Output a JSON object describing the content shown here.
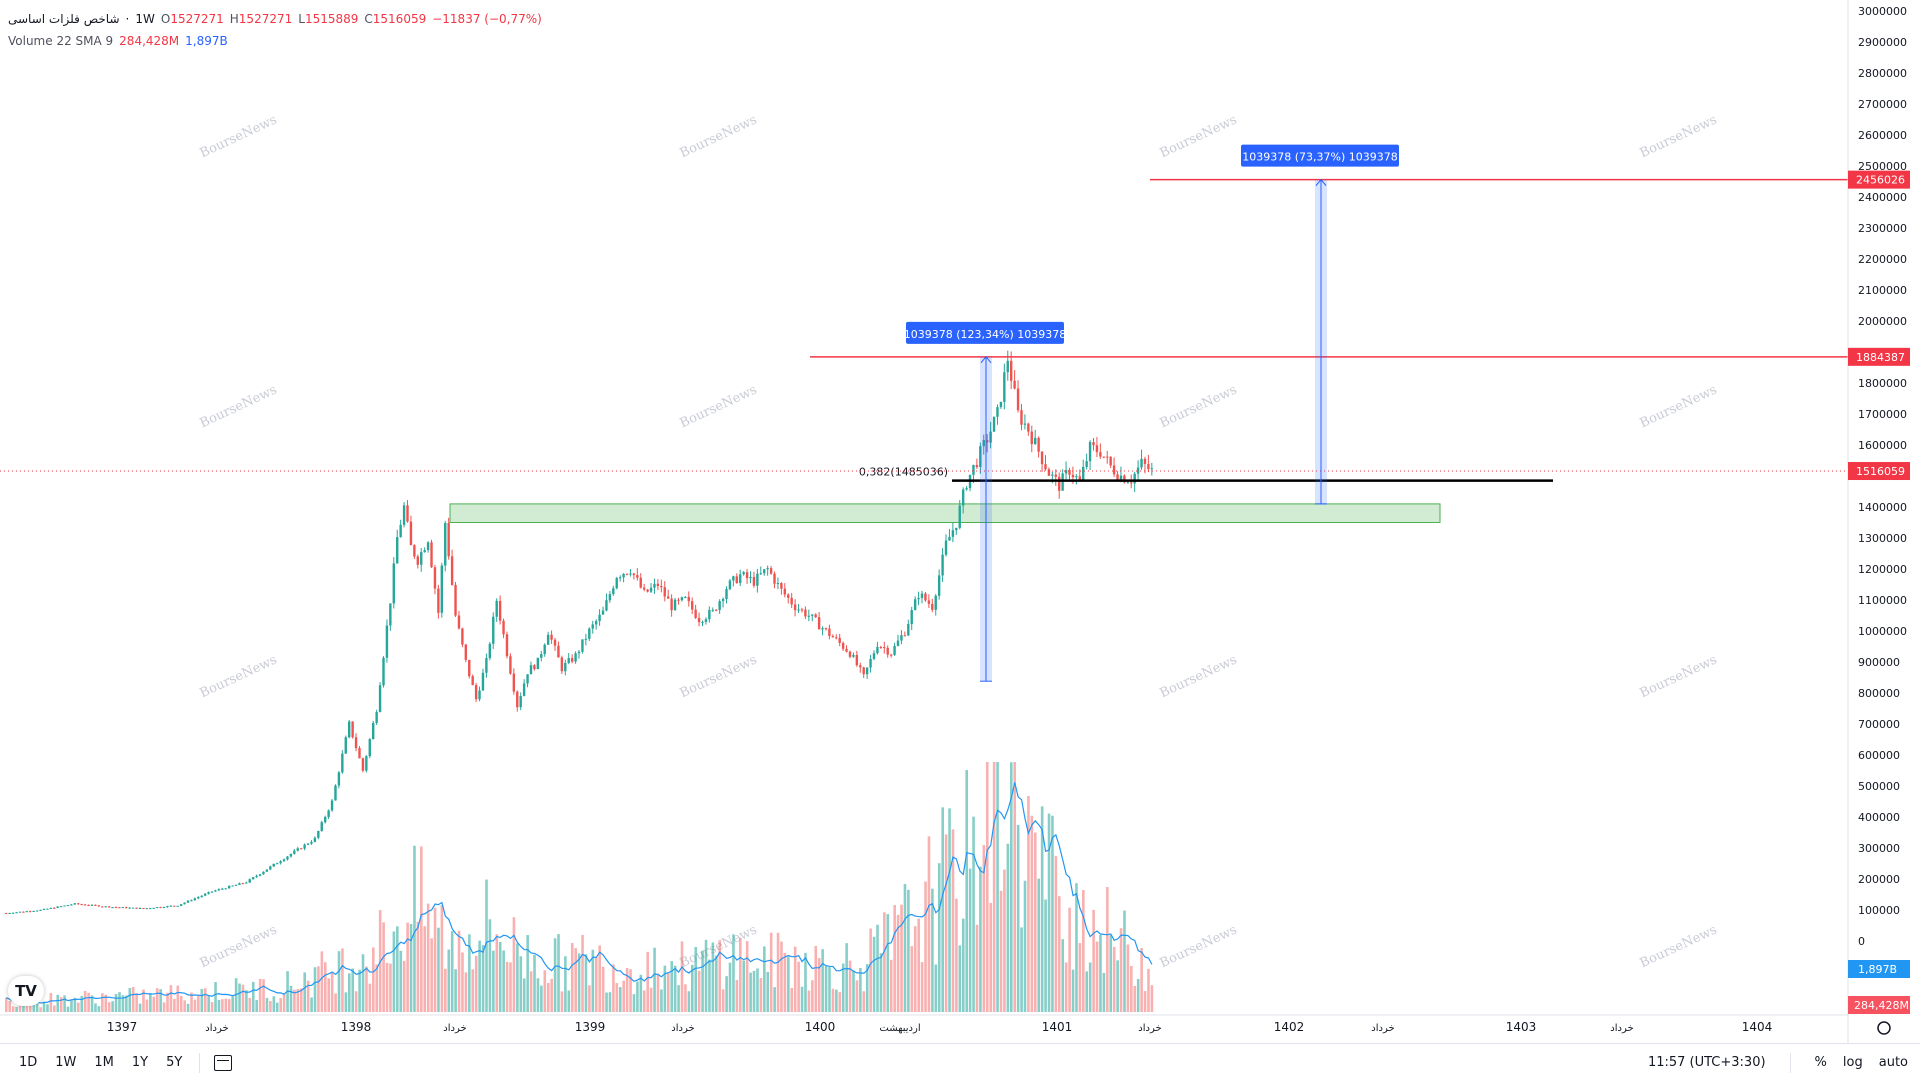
{
  "legend": {
    "title": "شاخص فلزات اساسی",
    "sep": "·",
    "interval": "1W",
    "open_label": "O",
    "open": "1527271",
    "high_label": "H",
    "high": "1527271",
    "low_label": "L",
    "low": "1515889",
    "close_label": "C",
    "close": "1516059",
    "change": "−11837 (−0,77%)",
    "volume_name": "Volume 22 SMA 9",
    "volume_value": "284,428M",
    "volume_sma": "1,897B"
  },
  "watermark": "BourseNews",
  "annotations": {
    "measure1_label": "1039378 (123,34%) 1039378",
    "measure2_label": "1039378 (73,37%) 1039378",
    "fib_label": "0,382(1485036)",
    "top_level_tag": "2456026",
    "mid_level_tag": "1884387",
    "last_price_tag": "1516059",
    "vol_sma_tag": "1,897B",
    "vol_tag": "284,428M"
  },
  "chart_data": {
    "type": "candlestick",
    "yaxis_ticks": [
      0,
      100000,
      200000,
      300000,
      400000,
      500000,
      600000,
      700000,
      800000,
      900000,
      1000000,
      1100000,
      1200000,
      1300000,
      1400000,
      1500000,
      1600000,
      1700000,
      1800000,
      1900000,
      2000000,
      2100000,
      2200000,
      2300000,
      2400000,
      2500000,
      2600000,
      2700000,
      2800000,
      2900000,
      3000000
    ],
    "ylim": [
      0,
      3000000
    ],
    "xaxis_labels": [
      {
        "text": "1397",
        "major": true
      },
      {
        "text": "خرداد",
        "major": false
      },
      {
        "text": "1398",
        "major": true
      },
      {
        "text": "خرداد",
        "major": false
      },
      {
        "text": "1399",
        "major": true
      },
      {
        "text": "خرداد",
        "major": false
      },
      {
        "text": "1400",
        "major": true
      },
      {
        "text": "اردیبهشت",
        "major": false
      },
      {
        "text": "1401",
        "major": true
      },
      {
        "text": "خرداد",
        "major": false
      },
      {
        "text": "1402",
        "major": true
      },
      {
        "text": "خرداد",
        "major": false
      },
      {
        "text": "1403",
        "major": true
      },
      {
        "text": "خرداد",
        "major": false
      },
      {
        "text": "1404",
        "major": true
      }
    ],
    "price_path": [
      [
        0,
        90000
      ],
      [
        10,
        100000
      ],
      [
        20,
        120000
      ],
      [
        30,
        110000
      ],
      [
        40,
        105000
      ],
      [
        50,
        115000
      ],
      [
        60,
        160000
      ],
      [
        70,
        190000
      ],
      [
        80,
        260000
      ],
      [
        90,
        330000
      ],
      [
        95,
        450000
      ],
      [
        100,
        700000
      ],
      [
        104,
        550000
      ],
      [
        108,
        750000
      ],
      [
        112,
        1100000
      ],
      [
        114,
        1300000
      ],
      [
        116,
        1400000
      ],
      [
        118,
        1270000
      ],
      [
        120,
        1230000
      ],
      [
        123,
        1300000
      ],
      [
        126,
        1060000
      ],
      [
        128,
        1350000
      ],
      [
        131,
        1050000
      ],
      [
        134,
        900000
      ],
      [
        137,
        780000
      ],
      [
        140,
        900000
      ],
      [
        143,
        1100000
      ],
      [
        146,
        930000
      ],
      [
        149,
        760000
      ],
      [
        152,
        870000
      ],
      [
        155,
        900000
      ],
      [
        158,
        1000000
      ],
      [
        162,
        880000
      ],
      [
        166,
        920000
      ],
      [
        170,
        1000000
      ],
      [
        174,
        1060000
      ],
      [
        178,
        1180000
      ],
      [
        182,
        1200000
      ],
      [
        186,
        1120000
      ],
      [
        190,
        1150000
      ],
      [
        194,
        1080000
      ],
      [
        198,
        1100000
      ],
      [
        202,
        1040000
      ],
      [
        206,
        1060000
      ],
      [
        210,
        1140000
      ],
      [
        214,
        1180000
      ],
      [
        218,
        1160000
      ],
      [
        222,
        1200000
      ],
      [
        226,
        1130000
      ],
      [
        230,
        1080000
      ],
      [
        234,
        1050000
      ],
      [
        238,
        1010000
      ],
      [
        242,
        970000
      ],
      [
        246,
        930000
      ],
      [
        250,
        850000
      ],
      [
        254,
        960000
      ],
      [
        258,
        930000
      ],
      [
        262,
        1000000
      ],
      [
        266,
        1120000
      ],
      [
        270,
        1080000
      ],
      [
        274,
        1280000
      ],
      [
        277,
        1350000
      ],
      [
        280,
        1480000
      ],
      [
        283,
        1550000
      ],
      [
        286,
        1620000
      ],
      [
        289,
        1700000
      ],
      [
        292,
        1880000
      ],
      [
        295,
        1700000
      ],
      [
        298,
        1650000
      ],
      [
        301,
        1580000
      ],
      [
        304,
        1510000
      ],
      [
        307,
        1470000
      ],
      [
        310,
        1520000
      ],
      [
        313,
        1480000
      ],
      [
        316,
        1590000
      ],
      [
        319,
        1580000
      ],
      [
        322,
        1530000
      ],
      [
        325,
        1500000
      ],
      [
        328,
        1490000
      ],
      [
        331,
        1540000
      ],
      [
        334,
        1516059
      ]
    ],
    "volume_path": [
      [
        0,
        20
      ],
      [
        40,
        30
      ],
      [
        80,
        45
      ],
      [
        100,
        90
      ],
      [
        110,
        130
      ],
      [
        120,
        200
      ],
      [
        130,
        120
      ],
      [
        140,
        160
      ],
      [
        150,
        110
      ],
      [
        160,
        90
      ],
      [
        170,
        95
      ],
      [
        180,
        80
      ],
      [
        190,
        90
      ],
      [
        200,
        80
      ],
      [
        210,
        110
      ],
      [
        220,
        90
      ],
      [
        230,
        100
      ],
      [
        240,
        85
      ],
      [
        250,
        90
      ],
      [
        260,
        140
      ],
      [
        270,
        220
      ],
      [
        280,
        280
      ],
      [
        290,
        450
      ],
      [
        300,
        280
      ],
      [
        310,
        200
      ],
      [
        320,
        150
      ],
      [
        334,
        80
      ]
    ],
    "levels": {
      "top": 2456026,
      "mid": 1884387,
      "fib": 1485036,
      "last": 1516059
    },
    "zone": [
      1350000,
      1410000
    ],
    "measure1": {
      "from": 838000,
      "to": 1884387
    },
    "measure2": {
      "from": 1410000,
      "to": 2456026
    }
  }
}
